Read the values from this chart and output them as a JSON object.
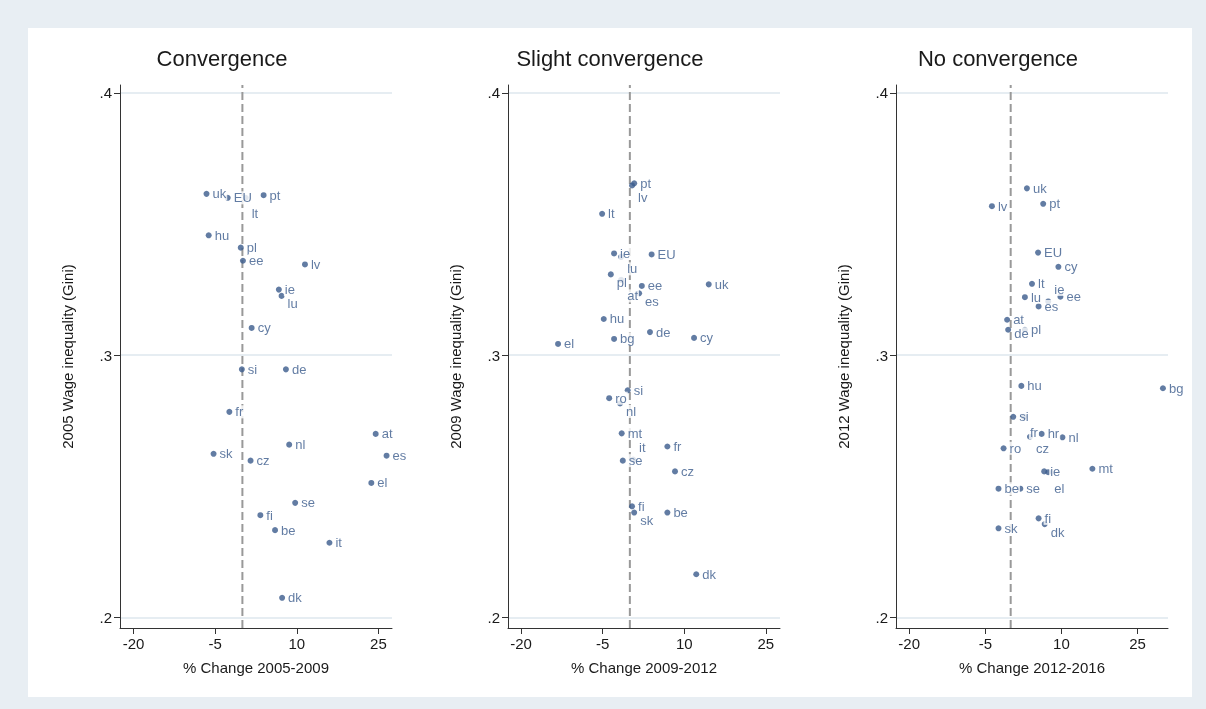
{
  "chart_data": [
    {
      "type": "scatter",
      "title": "Convergence",
      "xlabel": "% Change 2005-2009",
      "ylabel": "2005 Wage inequality (Gini)",
      "xlim": [
        -22.5,
        27.5
      ],
      "ylim": [
        0.196,
        0.403
      ],
      "xticks": [
        -20,
        -5,
        10,
        25
      ],
      "yticks": [
        {
          "value": 0.2,
          "label": ".2"
        },
        {
          "value": 0.3,
          "label": ".3"
        },
        {
          "value": 0.4,
          "label": ".4"
        }
      ],
      "grid": "y",
      "marker": "circle",
      "ref_lines": [
        {
          "axis": "x",
          "value": 0,
          "color": "#999999",
          "line_style": "dashed"
        }
      ],
      "series": [
        {
          "color": "#3b5b8c",
          "x": [
            -6.6,
            -2.7,
            0.6,
            3.9,
            -6.2,
            -0.3,
            0.1,
            11.5,
            6.7,
            7.2,
            1.7,
            -0.1,
            8.0,
            -2.4,
            24.5,
            8.6,
            -5.3,
            26.5,
            1.5,
            23.7,
            9.7,
            3.3,
            6.0,
            16.0,
            7.3
          ],
          "values": [
            0.3615,
            0.36,
            0.36,
            0.361,
            0.3457,
            0.341,
            0.336,
            0.3346,
            0.325,
            0.3226,
            0.3104,
            0.2946,
            0.2946,
            0.2784,
            0.27,
            0.2659,
            0.2624,
            0.2617,
            0.2598,
            0.2513,
            0.2437,
            0.239,
            0.2333,
            0.2285,
            0.2075
          ],
          "value_labels": [
            "uk",
            "EU",
            "lt",
            "pt",
            "hu",
            "pl",
            "ee",
            "lv",
            "ie",
            "lu",
            "cy",
            "si",
            "de",
            "fr",
            "at",
            "nl",
            "sk",
            "es",
            "cz",
            "el",
            "se",
            "fi",
            "be",
            "it",
            "dk"
          ]
        }
      ]
    },
    {
      "type": "scatter",
      "title": "Slight convergence",
      "xlabel": "% Change 2009-2012",
      "ylabel": "2009 Wage inequality (Gini)",
      "xlim": [
        -22.4,
        27.6
      ],
      "ylim": [
        0.196,
        0.403
      ],
      "xticks": [
        -20,
        -5,
        10,
        25
      ],
      "yticks": [
        {
          "value": 0.2,
          "label": ".2"
        },
        {
          "value": 0.3,
          "label": ".3"
        },
        {
          "value": 0.4,
          "label": ".4"
        }
      ],
      "grid": "y",
      "marker": "circle",
      "ref_lines": [
        {
          "axis": "x",
          "value": 0,
          "color": "#999999",
          "line_style": "dashed"
        }
      ],
      "series": [
        {
          "color": "#3b5b8c",
          "x": [
            0.8,
            0.4,
            -5.1,
            -2.9,
            -1.6,
            4.0,
            -3.5,
            -1.6,
            2.2,
            1.7,
            14.5,
            -4.8,
            3.7,
            -2.9,
            11.8,
            -13.2,
            -0.4,
            -3.8,
            -1.8,
            -1.5,
            6.9,
            -1.3,
            0.6,
            8.3,
            0.4,
            0.8,
            6.9,
            12.2
          ],
          "values": [
            0.3655,
            0.3647,
            0.3539,
            0.3388,
            0.3375,
            0.3384,
            0.3308,
            0.3287,
            0.3264,
            0.3236,
            0.327,
            0.3138,
            0.3088,
            0.3062,
            0.3066,
            0.3043,
            0.2866,
            0.2836,
            0.2816,
            0.2702,
            0.2652,
            0.2598,
            0.2602,
            0.2557,
            0.2424,
            0.24,
            0.24,
            0.2165
          ],
          "value_labels": [
            "pt",
            "lv",
            "lt",
            "ie",
            "lu",
            "EU",
            "pl",
            "at",
            "ee",
            "es",
            "uk",
            "hu",
            "de",
            "bg",
            "cy",
            "el",
            "si",
            "ro",
            "nl",
            "mt",
            "fr",
            "se",
            "it",
            "cz",
            "fi",
            "sk",
            "be",
            "dk"
          ]
        }
      ]
    },
    {
      "type": "scatter",
      "title": "No convergence",
      "xlabel": "% Change 2012-2016",
      "ylabel": "2012 Wage inequality (Gini)",
      "xlim": [
        -22.6,
        31
      ],
      "ylim": [
        0.196,
        0.403
      ],
      "xticks": [
        -20,
        -5,
        10,
        25
      ],
      "yticks": [
        {
          "value": 0.2,
          "label": ".2"
        },
        {
          "value": 0.3,
          "label": ".3"
        },
        {
          "value": 0.4,
          "label": ".4"
        }
      ],
      "grid": "y",
      "marker": "circle",
      "ref_lines": [
        {
          "axis": "x",
          "value": 0,
          "color": "#999999",
          "line_style": "dashed"
        }
      ],
      "series": [
        {
          "color": "#3b5b8c",
          "x": [
            3.2,
            -3.7,
            6.4,
            5.4,
            9.4,
            4.2,
            2.8,
            5.5,
            7.4,
            9.8,
            -0.7,
            -0.5,
            2.8,
            2.1,
            30.0,
            0.5,
            2.6,
            3.8,
            6.1,
            10.2,
            -1.4,
            6.6,
            7.4,
            16.1,
            -2.4,
            1.9,
            5.5,
            6.7,
            -2.4
          ],
          "values": [
            0.3636,
            0.3568,
            0.3577,
            0.3391,
            0.3337,
            0.3272,
            0.3221,
            0.3186,
            0.3205,
            0.3223,
            0.3135,
            0.3097,
            0.3097,
            0.2883,
            0.2874,
            0.2765,
            0.2765,
            0.2689,
            0.27,
            0.2687,
            0.2645,
            0.2557,
            0.2554,
            0.2567,
            0.2491,
            0.2491,
            0.2378,
            0.2356,
            0.234
          ],
          "value_labels": [
            "uk",
            "lv",
            "pt",
            "EU",
            "cy",
            "lt",
            "lu",
            "es",
            "ie",
            "ee",
            "at",
            "de",
            "pl",
            "hu",
            "bg",
            "si",
            "fr",
            "cz",
            "hr",
            "nl",
            "ro",
            "ie",
            "el",
            "mt",
            "be",
            "se",
            "fi",
            "dk",
            "sk"
          ]
        }
      ]
    }
  ]
}
